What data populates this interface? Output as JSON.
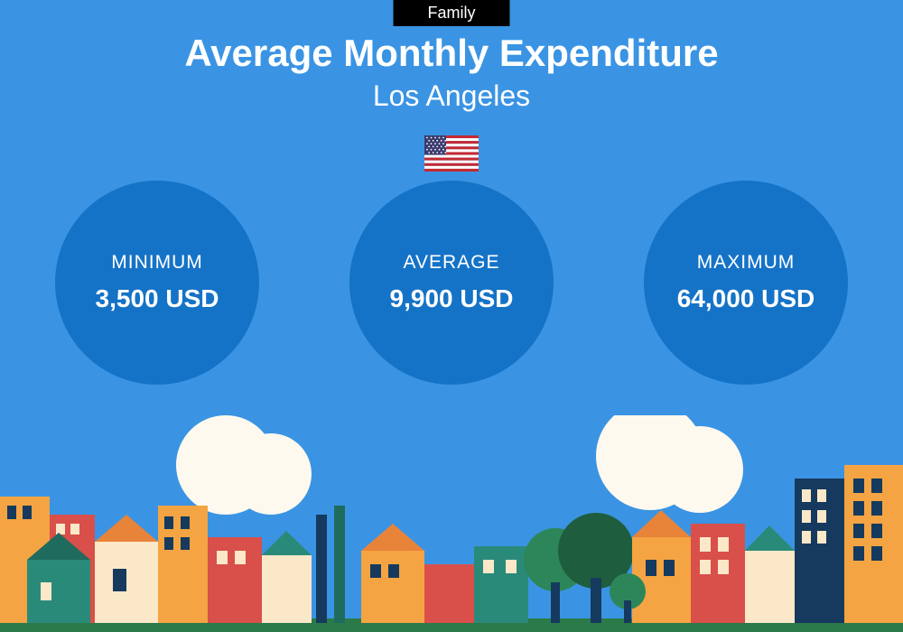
{
  "layout": {
    "background_color": "#3a94e3",
    "badge_background": "#000000",
    "circle_color": "#1573c7",
    "text_color": "#ffffff"
  },
  "badge": {
    "label": "Family"
  },
  "title": "Average Monthly Expenditure",
  "subtitle": "Los Angeles",
  "flag": {
    "country": "United States",
    "stripe_red": "#c52a32",
    "stripe_white": "#ffffff",
    "canton_blue": "#3b3b6e"
  },
  "stats": [
    {
      "label": "MINIMUM",
      "value": "3,500 USD"
    },
    {
      "label": "AVERAGE",
      "value": "9,900 USD"
    },
    {
      "label": "MAXIMUM",
      "value": "64,000 USD"
    }
  ],
  "skyline": {
    "ground_color": "#2a7a4a",
    "cloud_color": "#fef9ef",
    "palette": {
      "orange": "#f4a442",
      "dark_orange": "#e8833a",
      "red": "#d94f4a",
      "teal": "#2a8a7a",
      "dark_teal": "#1f6b5e",
      "navy": "#153a5e",
      "cream": "#fae8c8",
      "green_tree": "#2d8659",
      "dark_green": "#1e5d3d"
    }
  }
}
